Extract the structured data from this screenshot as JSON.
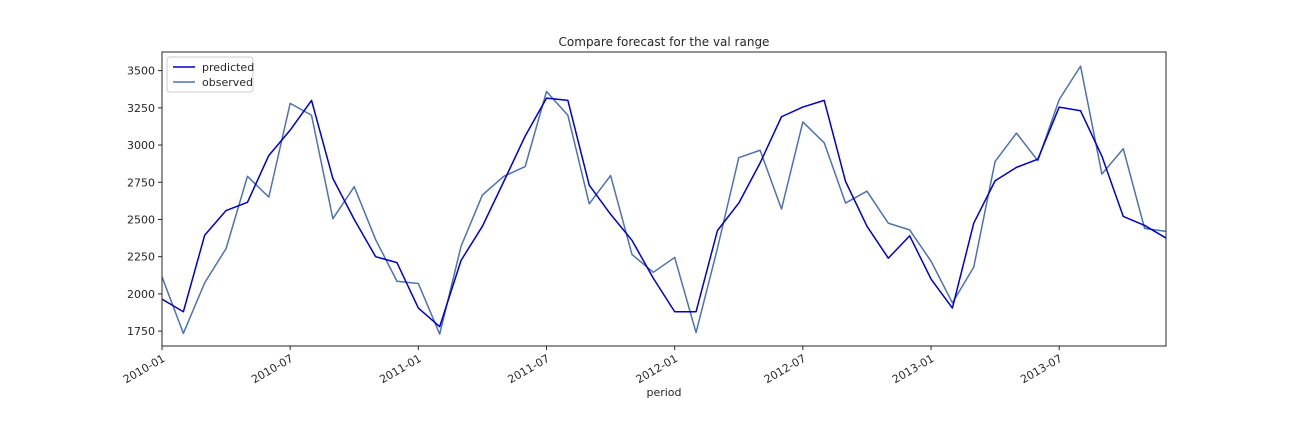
{
  "chart_data": {
    "type": "line",
    "title": "Compare forecast for the val range",
    "xlabel": "period",
    "ylabel": "",
    "ylim": [
      1650,
      3625
    ],
    "xlim": [
      "2010-01",
      "2013-12"
    ],
    "grid": false,
    "legend_position": "top-left",
    "y_ticks": [
      1750,
      2000,
      2250,
      2500,
      2750,
      3000,
      3250,
      3500
    ],
    "x_ticks": [
      "2010-01",
      "2010-07",
      "2011-01",
      "2011-07",
      "2012-01",
      "2012-07",
      "2013-01",
      "2013-07"
    ],
    "x": [
      "2010-01",
      "2010-02",
      "2010-03",
      "2010-04",
      "2010-05",
      "2010-06",
      "2010-07",
      "2010-08",
      "2010-09",
      "2010-10",
      "2010-11",
      "2010-12",
      "2011-01",
      "2011-02",
      "2011-03",
      "2011-04",
      "2011-05",
      "2011-06",
      "2011-07",
      "2011-08",
      "2011-09",
      "2011-10",
      "2011-11",
      "2011-12",
      "2012-01",
      "2012-02",
      "2012-03",
      "2012-04",
      "2012-05",
      "2012-06",
      "2012-07",
      "2012-08",
      "2012-09",
      "2012-10",
      "2012-11",
      "2012-12",
      "2013-01",
      "2013-02",
      "2013-03",
      "2013-04",
      "2013-05",
      "2013-06",
      "2013-07",
      "2013-08",
      "2013-09",
      "2013-10",
      "2013-11",
      "2013-12"
    ],
    "series": [
      {
        "name": "predicted",
        "color": "#0000cc",
        "values": [
          1965,
          1880,
          2395,
          2560,
          2615,
          2930,
          3100,
          3300,
          2775,
          2500,
          2250,
          2210,
          1905,
          1780,
          2225,
          2455,
          2755,
          3060,
          3315,
          3300,
          2730,
          2535,
          2360,
          2105,
          1880,
          1880,
          2425,
          2610,
          2880,
          3190,
          3255,
          3300,
          2755,
          2455,
          2240,
          2390,
          2100,
          1905,
          2475,
          2760,
          2850,
          2905,
          3255,
          3230,
          2925,
          2520,
          2460,
          2375
        ]
      },
      {
        "name": "observed",
        "color": "#4c72b0",
        "values": [
          2115,
          1735,
          2075,
          2305,
          2790,
          2650,
          3280,
          3200,
          2505,
          2720,
          2365,
          2085,
          2070,
          1730,
          2320,
          2665,
          2790,
          2855,
          3360,
          3200,
          2605,
          2795,
          2265,
          2145,
          2245,
          1740,
          2305,
          2915,
          2965,
          2570,
          3155,
          3015,
          2610,
          2690,
          2475,
          2430,
          2220,
          1940,
          2180,
          2890,
          3080,
          2895,
          3305,
          3530,
          2805,
          2975,
          2440,
          2420
        ]
      }
    ]
  }
}
